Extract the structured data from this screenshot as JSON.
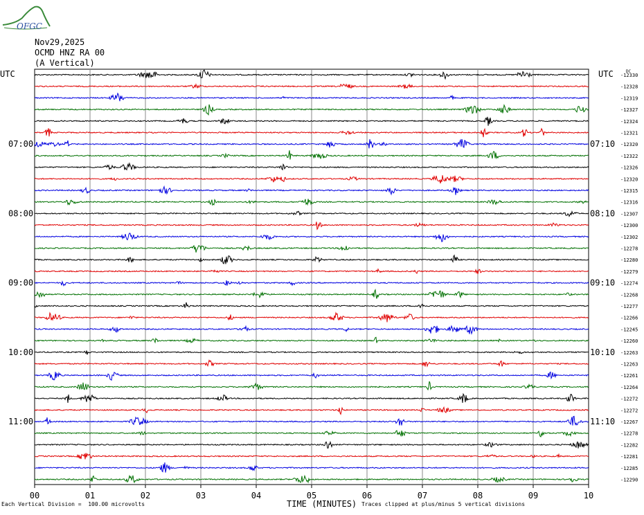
{
  "logo": {
    "text": "OFGC",
    "colors": {
      "swoosh": "#3a8a3a",
      "text": "#2a4fa0"
    }
  },
  "header": {
    "date": "Nov29,2025",
    "station": "OCMD HNZ RA 00",
    "component": "(A Vertical)"
  },
  "footer": {
    "scale_note": "Each Vertical Division =  100.00 microvolts",
    "xlabel": "TIME (MINUTES)",
    "clip_note": "Traces clipped at plus/minus 5 vertical divisions"
  },
  "chart_data": {
    "type": "line",
    "title": "",
    "xlabel": "TIME (MINUTES)",
    "ylabel": "",
    "xlim": [
      0,
      10
    ],
    "x_ticks": [
      "00",
      "01",
      "02",
      "03",
      "04",
      "05",
      "06",
      "07",
      "08",
      "09",
      "10"
    ],
    "left_axis_label": "UTC",
    "right_axis_label": "UTC",
    "left_time_labels": [
      {
        "row": 6,
        "label": "07:00"
      },
      {
        "row": 12,
        "label": "08:00"
      },
      {
        "row": 18,
        "label": "09:00"
      },
      {
        "row": 24,
        "label": "10:00"
      },
      {
        "row": 30,
        "label": "11:00"
      }
    ],
    "right_time_labels": [
      {
        "row": 6,
        "label": "07:10"
      },
      {
        "row": 12,
        "label": "08:10"
      },
      {
        "row": 18,
        "label": "09:10"
      },
      {
        "row": 24,
        "label": "10:10"
      },
      {
        "row": 30,
        "label": "11:10"
      }
    ],
    "dc_label": "DC",
    "trace_colors": [
      "#000000",
      "#e00000",
      "#0000e0",
      "#007000"
    ],
    "grid": true,
    "row_offsets": [
      "-12330",
      "-12328",
      "-12319",
      "-12327",
      "-12324",
      "-12321",
      "-12320",
      "-12322",
      "-12326",
      "-12320",
      "-12315",
      "-12316",
      "-12307",
      "-12300",
      "-12302",
      "-12278",
      "-12280",
      "-12279",
      "-12274",
      "-12268",
      "-12277",
      "-12266",
      "-12245",
      "-12260",
      "-12263",
      "-12263",
      "-12261",
      "-12264",
      "-12272",
      "-12272",
      "-12267",
      "-12278",
      "-12282",
      "-12281",
      "-12285",
      "-12290"
    ]
  }
}
